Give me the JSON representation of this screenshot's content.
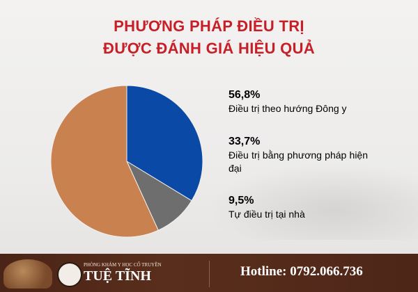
{
  "title_line1": "PHƯƠNG PHÁP ĐIỀU TRỊ",
  "title_line2": "ĐƯỢC ĐÁNH GIÁ HIỆU QUẢ",
  "chart_data": {
    "type": "pie",
    "title": "PHƯƠNG PHÁP ĐIỀU TRỊ ĐƯỢC ĐÁNH GIÁ HIỆU QUẢ",
    "start": "top",
    "direction": "clockwise",
    "legend_placement": "right",
    "slices": [
      {
        "label": "Điều trị bằng phương pháp hiện đại",
        "value": 33.7,
        "display": "33,7%",
        "color": "#0b49a6"
      },
      {
        "label": "Tự điều trị tại nhà",
        "value": 9.5,
        "display": "9,5%",
        "color": "#6e6e6e"
      },
      {
        "label": "Điều trị theo hướng Đông y",
        "value": 56.8,
        "display": "56,8%",
        "color": "#c8814f"
      }
    ]
  },
  "legend": [
    {
      "pct": "56,8%",
      "label": "Điều trị theo hướng Đông y",
      "color": "#c8814f"
    },
    {
      "pct": "33,7%",
      "label": "Điều trị bằng phương pháp hiện đại",
      "color": "#0b49a6"
    },
    {
      "pct": "9,5%",
      "label": "Tự điều trị tại nhà",
      "color": "#4a4a4a"
    }
  ],
  "footer": {
    "clinic_subtitle": "PHÒNG KHÁM Y HỌC CỔ TRUYỀN",
    "clinic_name": "TUỆ TĨNH",
    "hotline": "Hotline: 0792.066.736"
  }
}
